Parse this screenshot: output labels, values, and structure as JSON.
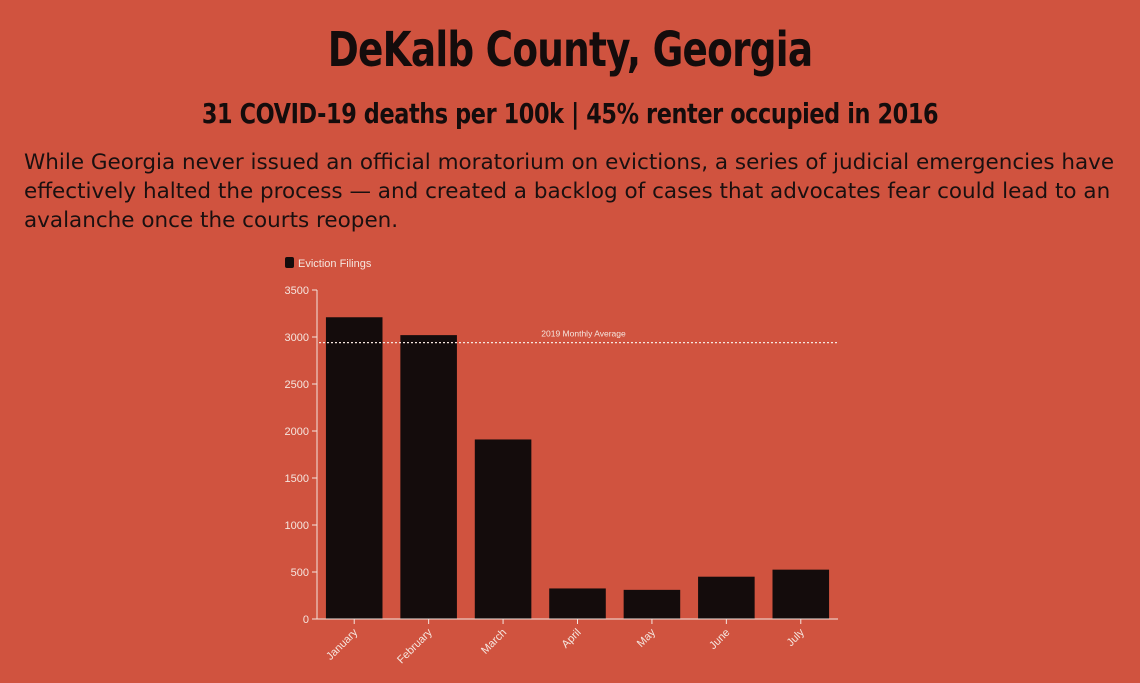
{
  "header": {
    "title": "DeKalb County, Georgia",
    "subtitle": "31 COVID-19 deaths per 100k | 45% renter occupied in 2016",
    "description": "While Georgia never issued an official moratorium on evictions, a series of judicial emergencies have effectively halted the process — and created a backlog of cases that advocates fear could lead to an avalanche once the courts reopen."
  },
  "colors": {
    "background": "#d0533f",
    "bar": "#140c0c",
    "axis": "#f5e6df",
    "reference_line": "#f5e6df"
  },
  "chart_data": {
    "type": "bar",
    "title": "",
    "xlabel": "",
    "ylabel": "",
    "categories": [
      "January",
      "February",
      "March",
      "April",
      "May",
      "June",
      "July"
    ],
    "series": [
      {
        "name": "Eviction Filings",
        "values": [
          3210,
          3020,
          1910,
          325,
          310,
          450,
          525
        ]
      }
    ],
    "ylim": [
      0,
      3500
    ],
    "yticks": [
      0,
      500,
      1000,
      1500,
      2000,
      2500,
      3000,
      3500
    ],
    "reference_line": {
      "label": "2019 Monthly Average",
      "value": 2940
    },
    "legend": "top-left",
    "grid": false
  }
}
